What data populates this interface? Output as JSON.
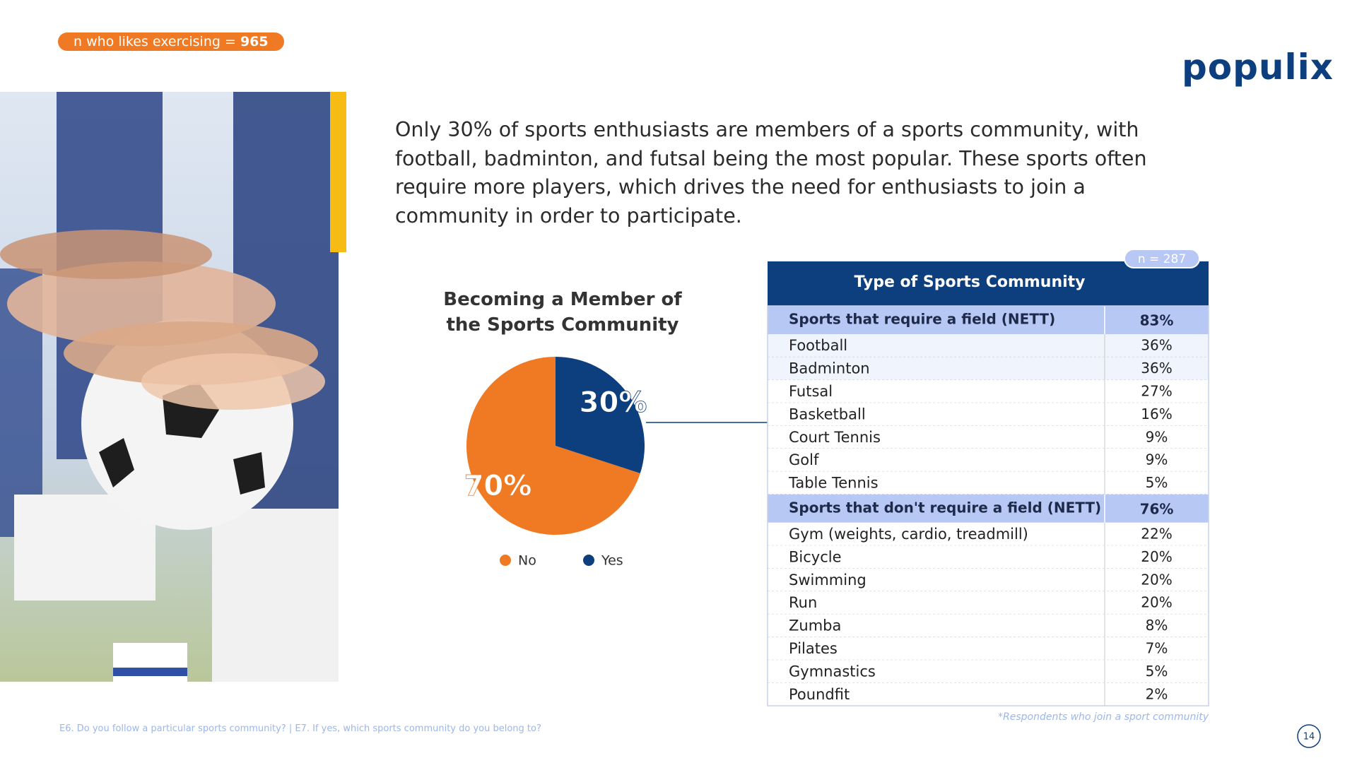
{
  "badge": {
    "label": "n who likes exercising =",
    "value": "965"
  },
  "logo": "populix",
  "headline": "Only 30% of sports enthusiasts are members of a sports community, with football, badminton, and futsal being the most popular. These sports often require more players, which drives the need for enthusiasts to join a community in order to participate.",
  "chart_data": {
    "type": "pie",
    "title": "Becoming a Member of the Sports Community",
    "categories": [
      "No",
      "Yes"
    ],
    "values": [
      70,
      30
    ],
    "value_labels": [
      "70%",
      "30%"
    ],
    "colors": [
      "#ef7a23",
      "#0d3f7f"
    ],
    "legend": "bottom"
  },
  "table": {
    "sample": "n = 287",
    "header": "Type of Sports Community",
    "groups": [
      {
        "name": "Sports that require a field (NETT)",
        "value": "83%",
        "items": [
          [
            "Football",
            "36%"
          ],
          [
            "Badminton",
            "36%"
          ],
          [
            "Futsal",
            "27%"
          ],
          [
            "Basketball",
            "16%"
          ],
          [
            "Court Tennis",
            "9%"
          ],
          [
            "Golf",
            "9%"
          ],
          [
            "Table Tennis",
            "5%"
          ]
        ]
      },
      {
        "name": "Sports that don't require a field  (NETT)",
        "value": "76%",
        "items": [
          [
            "Gym (weights, cardio, treadmill)",
            "22%"
          ],
          [
            "Bicycle",
            "20%"
          ],
          [
            "Swimming",
            "20%"
          ],
          [
            "Run",
            "20%"
          ],
          [
            "Zumba",
            "8%"
          ],
          [
            "Pilates",
            "7%"
          ],
          [
            "Gymnastics",
            "5%"
          ],
          [
            "Poundfit",
            "2%"
          ]
        ]
      }
    ],
    "footnote": "*Respondents who join a sport community"
  },
  "source": "E6. Do you follow a particular sports community? | E7. If yes, which sports community do you belong to?",
  "page_number": "14"
}
